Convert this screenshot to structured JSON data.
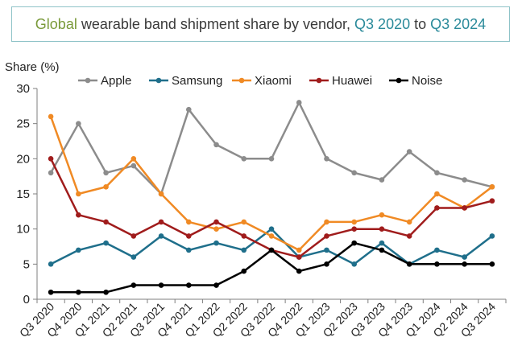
{
  "title": {
    "part1": "Global",
    "part2": " wearable band shipment share by vendor, ",
    "part3": "Q3 2020",
    "part4": " to ",
    "part5": "Q3 2024"
  },
  "chart_data": {
    "type": "line",
    "ylabel": "Share (%)",
    "xlabel": "",
    "ylim": [
      0,
      30
    ],
    "yticks": [
      0,
      5,
      10,
      15,
      20,
      25,
      30
    ],
    "grid": false,
    "legend_position": "top",
    "categories": [
      "Q3 2020",
      "Q4 2020",
      "Q1 2021",
      "Q2 2021",
      "Q3 2021",
      "Q4 2021",
      "Q1 2022",
      "Q2 2022",
      "Q3 2022",
      "Q4 2022",
      "Q1 2023",
      "Q2 2023",
      "Q3 2023",
      "Q4 2023",
      "Q1 2024",
      "Q2 2024",
      "Q3 2024"
    ],
    "series": [
      {
        "name": "Apple",
        "color": "#8c8c8c",
        "values": [
          18,
          25,
          18,
          19,
          15,
          27,
          22,
          20,
          20,
          28,
          20,
          18,
          17,
          21,
          18,
          17,
          16
        ]
      },
      {
        "name": "Samsung",
        "color": "#1f6f8b",
        "values": [
          5,
          7,
          8,
          6,
          9,
          7,
          8,
          7,
          10,
          6,
          7,
          5,
          8,
          5,
          7,
          6,
          9
        ]
      },
      {
        "name": "Xiaomi",
        "color": "#f08a24",
        "values": [
          26,
          15,
          16,
          20,
          15,
          11,
          10,
          11,
          9,
          7,
          11,
          11,
          12,
          11,
          15,
          13,
          16
        ]
      },
      {
        "name": "Huawei",
        "color": "#a01c1c",
        "values": [
          20,
          12,
          11,
          9,
          11,
          9,
          11,
          9,
          7,
          6,
          9,
          10,
          10,
          9,
          13,
          13,
          14
        ]
      },
      {
        "name": "Noise",
        "color": "#000000",
        "values": [
          1,
          1,
          1,
          2,
          2,
          2,
          2,
          4,
          7,
          4,
          5,
          8,
          7,
          5,
          5,
          5,
          5
        ]
      }
    ]
  }
}
